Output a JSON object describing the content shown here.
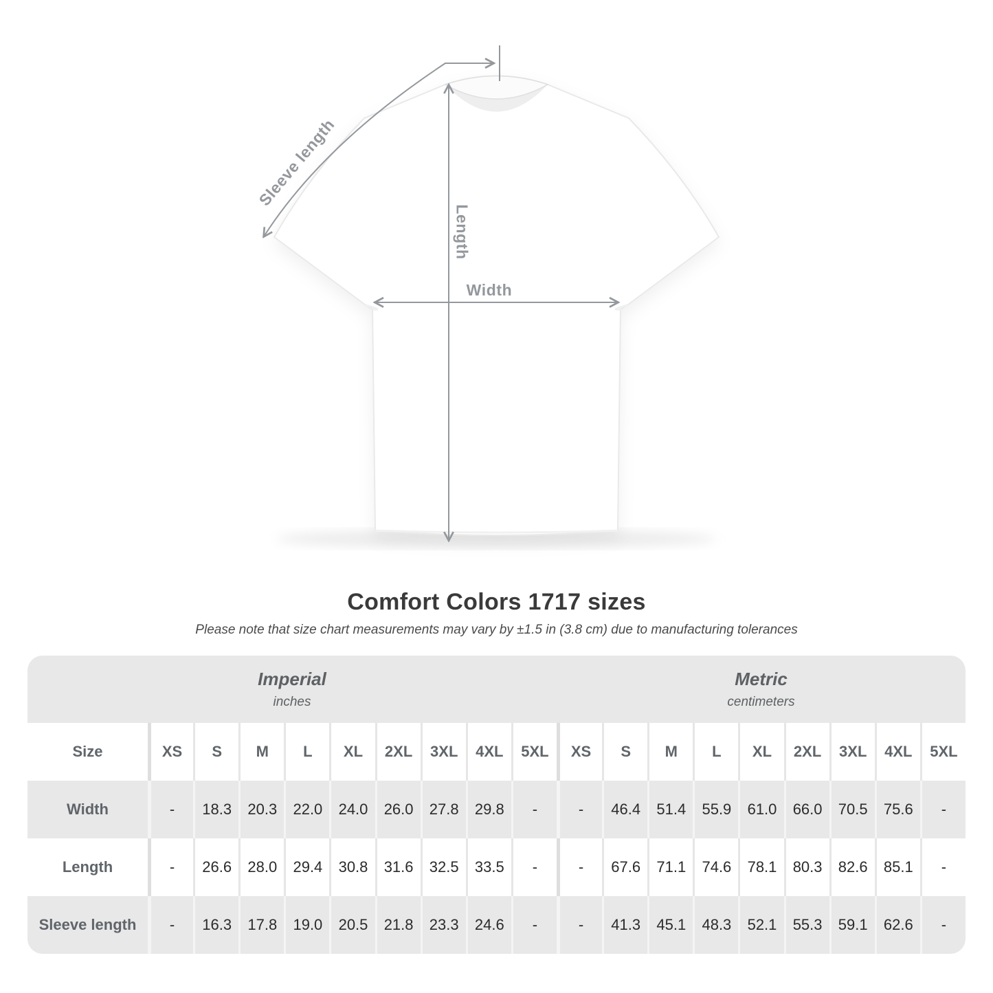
{
  "diagram": {
    "sleeve_label": "Sleeve length",
    "length_label": "Length",
    "width_label": "Width"
  },
  "chart_data": {
    "type": "table",
    "title": "Comfort Colors 1717 sizes",
    "note": "Please note that size chart measurements may vary by ±1.5 in (3.8 cm) due to manufacturing tolerances",
    "sections": [
      {
        "label": "Imperial",
        "unit": "inches"
      },
      {
        "label": "Metric",
        "unit": "centimeters"
      }
    ],
    "size_column_header": "Size",
    "sizes": [
      "XS",
      "S",
      "M",
      "L",
      "XL",
      "2XL",
      "3XL",
      "4XL",
      "5XL"
    ],
    "measurements": [
      {
        "label": "Width",
        "imperial": [
          "-",
          "18.3",
          "20.3",
          "22.0",
          "24.0",
          "26.0",
          "27.8",
          "29.8",
          "-"
        ],
        "metric": [
          "-",
          "46.4",
          "51.4",
          "55.9",
          "61.0",
          "66.0",
          "70.5",
          "75.6",
          "-"
        ]
      },
      {
        "label": "Length",
        "imperial": [
          "-",
          "26.6",
          "28.0",
          "29.4",
          "30.8",
          "31.6",
          "32.5",
          "33.5",
          "-"
        ],
        "metric": [
          "-",
          "67.6",
          "71.1",
          "74.6",
          "78.1",
          "80.3",
          "82.6",
          "85.1",
          "-"
        ]
      },
      {
        "label": "Sleeve length",
        "imperial": [
          "-",
          "16.3",
          "17.8",
          "19.0",
          "20.5",
          "21.8",
          "23.3",
          "24.6",
          "-"
        ],
        "metric": [
          "-",
          "41.3",
          "45.1",
          "48.3",
          "52.1",
          "55.3",
          "59.1",
          "62.6",
          "-"
        ]
      }
    ]
  },
  "colors": {
    "table_gray": "#e8e8e8",
    "header_text": "#60656a",
    "value_text": "#2b2b2b",
    "measure_gray": "#94989c",
    "title_text": "#3a3a3a"
  }
}
